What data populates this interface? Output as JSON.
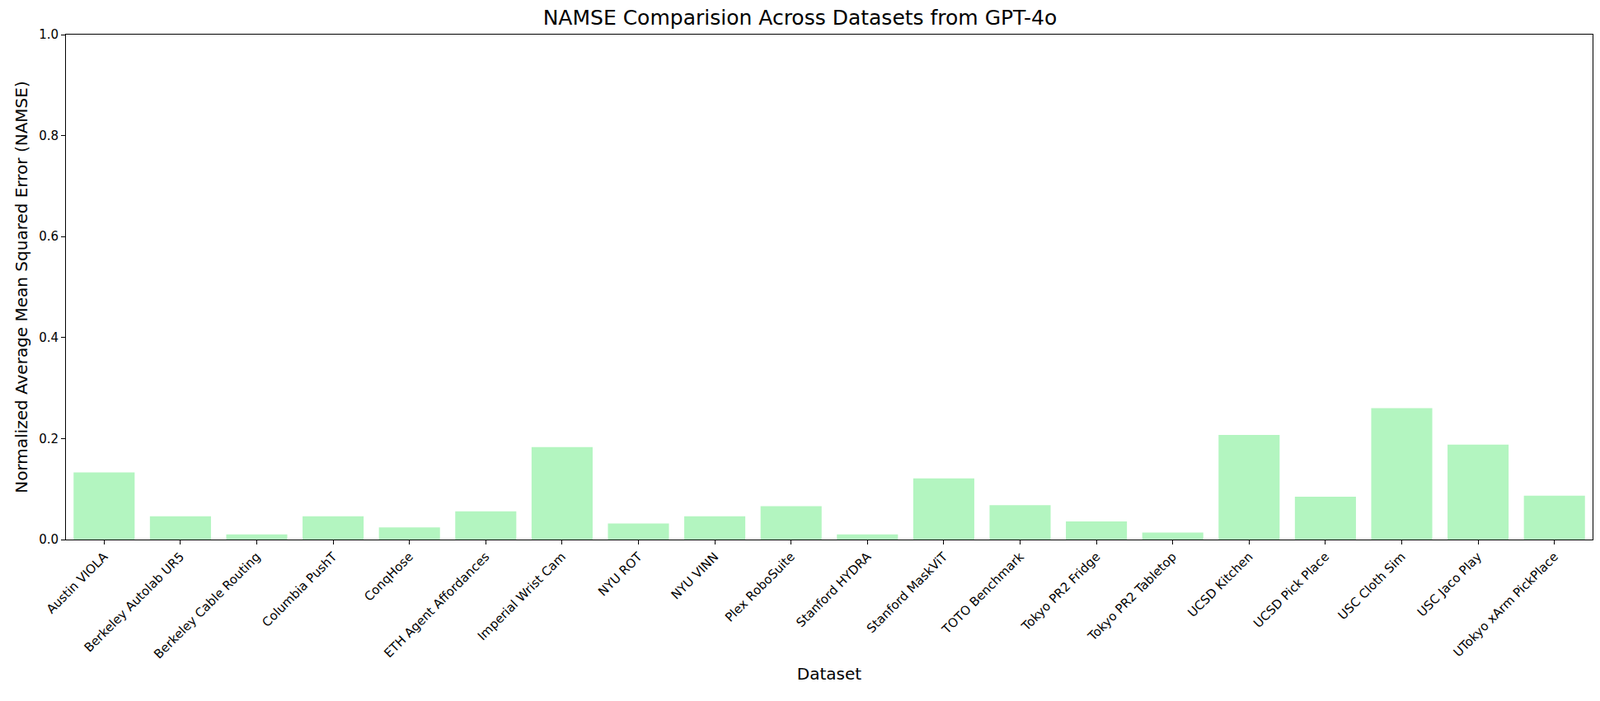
{
  "chart_data": {
    "type": "bar",
    "title": "NAMSE Comparision Across Datasets from GPT-4o",
    "x_label": "Dataset",
    "y_label": "Normalized Average Mean Squared Error (NAMSE)",
    "categories": [
      "Austin VIOLA",
      "Berkeley Autolab UR5",
      "Berkeley Cable Routing",
      "Columbia PushT",
      "ConqHose",
      "ETH Agent Affordances",
      "Imperial Wrist Cam",
      "NYU ROT",
      "NYU VINN",
      "Plex RoboSuite",
      "Stanford HYDRA",
      "Stanford MaskViT",
      "TOTO Benchmark",
      "Tokyo PR2 Fridge",
      "Tokyo PR2 Tabletop",
      "UCSD Kitchen",
      "UCSD Pick Place",
      "USC Cloth Sim",
      "USC Jaco Play",
      "UTokyo xArm PickPlace"
    ],
    "values": [
      0.133,
      0.046,
      0.01,
      0.046,
      0.024,
      0.056,
      0.183,
      0.032,
      0.046,
      0.066,
      0.01,
      0.121,
      0.068,
      0.036,
      0.014,
      0.207,
      0.085,
      0.26,
      0.188,
      0.087
    ],
    "color": "#b3f5c0",
    "ylim": [
      0,
      1
    ],
    "yticks": [
      {
        "value": 0,
        "label": "0.0"
      },
      0.2,
      0.4,
      0.6,
      0.8,
      {
        "value": 1,
        "label": "1.0"
      }
    ],
    "grid": false
  }
}
